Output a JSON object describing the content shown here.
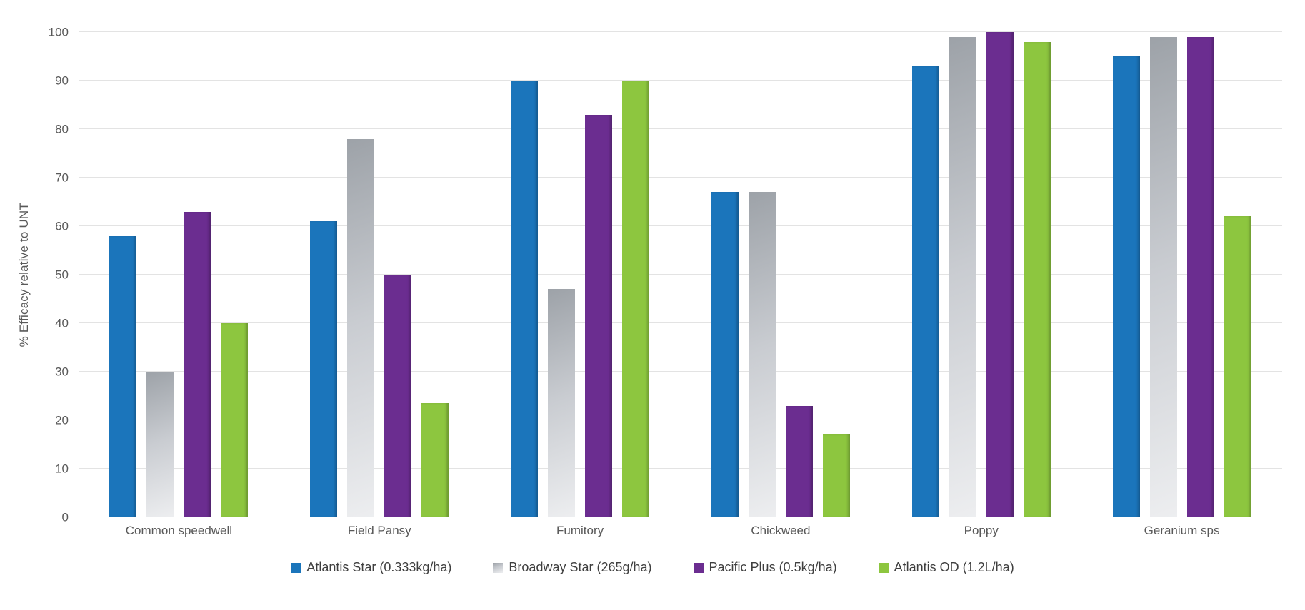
{
  "chart_data": {
    "type": "bar",
    "title": "",
    "xlabel": "",
    "ylabel": "% Efficacy relative to UNT",
    "ylim": [
      0,
      100
    ],
    "yticks": [
      0,
      10,
      20,
      30,
      40,
      50,
      60,
      70,
      80,
      90,
      100
    ],
    "grid": true,
    "legend_position": "bottom",
    "categories": [
      "Common speedwell",
      "Field Pansy",
      "Fumitory",
      "Chickweed",
      "Poppy",
      "Geranium sps"
    ],
    "series": [
      {
        "name": "Atlantis Star (0.333kg/ha)",
        "color": "#1b75bb",
        "values": [
          58,
          61,
          90,
          67,
          93,
          95
        ]
      },
      {
        "name": "Broadway Star (265g/ha)",
        "color": "#c6c9cd",
        "gradient": [
          "#9da2a8",
          "#c9ccd1",
          "#edeef0"
        ],
        "values": [
          30,
          78,
          47,
          67,
          99,
          99
        ]
      },
      {
        "name": "Pacific Plus (0.5kg/ha)",
        "color": "#6b2d90",
        "values": [
          63,
          50,
          83,
          23,
          100,
          99
        ]
      },
      {
        "name": "Atlantis OD (1.2L/ha)",
        "color": "#8dc63f",
        "values": [
          40,
          23.5,
          90,
          17,
          98,
          62
        ]
      }
    ]
  }
}
